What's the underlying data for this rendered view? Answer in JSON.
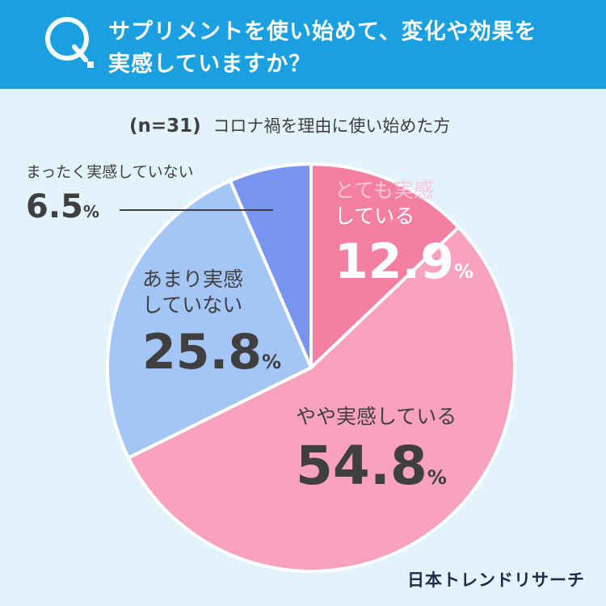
{
  "header": {
    "q_letter": "Q",
    "title_line1": "サプリメントを使い始めて、変化や効果を",
    "title_line2": "実感していますか？"
  },
  "subtitle": {
    "n_label": "(n=31)",
    "description": "コロナ禍を理由に使い始めた方"
  },
  "colors": {
    "header_bg": "#1aa0e0",
    "page_bg": "#e3f3fb",
    "slice_strong": "#f47fa3",
    "slice_somewhat": "#f9a2be",
    "slice_not_really": "#a3c6f6",
    "slice_not_at_all": "#7896ef",
    "label_white": "#ffffff",
    "label_pink": "#f9c7d8",
    "label_dark": "#3f3f3f"
  },
  "chart_data": {
    "type": "pie",
    "title": "サプリメントを使い始めて、変化や効果を実感していますか？",
    "sample": "n=31",
    "unit": "%",
    "start": "12 o'clock, clockwise",
    "slices": [
      {
        "key": "strong",
        "label_line1": "とても実感",
        "label_line2": "している",
        "number": "12.9",
        "value": 12.9
      },
      {
        "key": "somewhat",
        "label_line1": "やや実感している",
        "label_line2": "",
        "number": "54.8",
        "value": 54.8
      },
      {
        "key": "not_really",
        "label_line1": "あまり実感",
        "label_line2": "していない",
        "number": "25.8",
        "value": 25.8
      },
      {
        "key": "not_at_all",
        "label_line1": "まったく実感していない",
        "label_line2": "",
        "number": "6.5",
        "value": 6.5
      }
    ],
    "percent_sign": "%"
  },
  "brand": {
    "name": "日本トレンドリサーチ"
  }
}
